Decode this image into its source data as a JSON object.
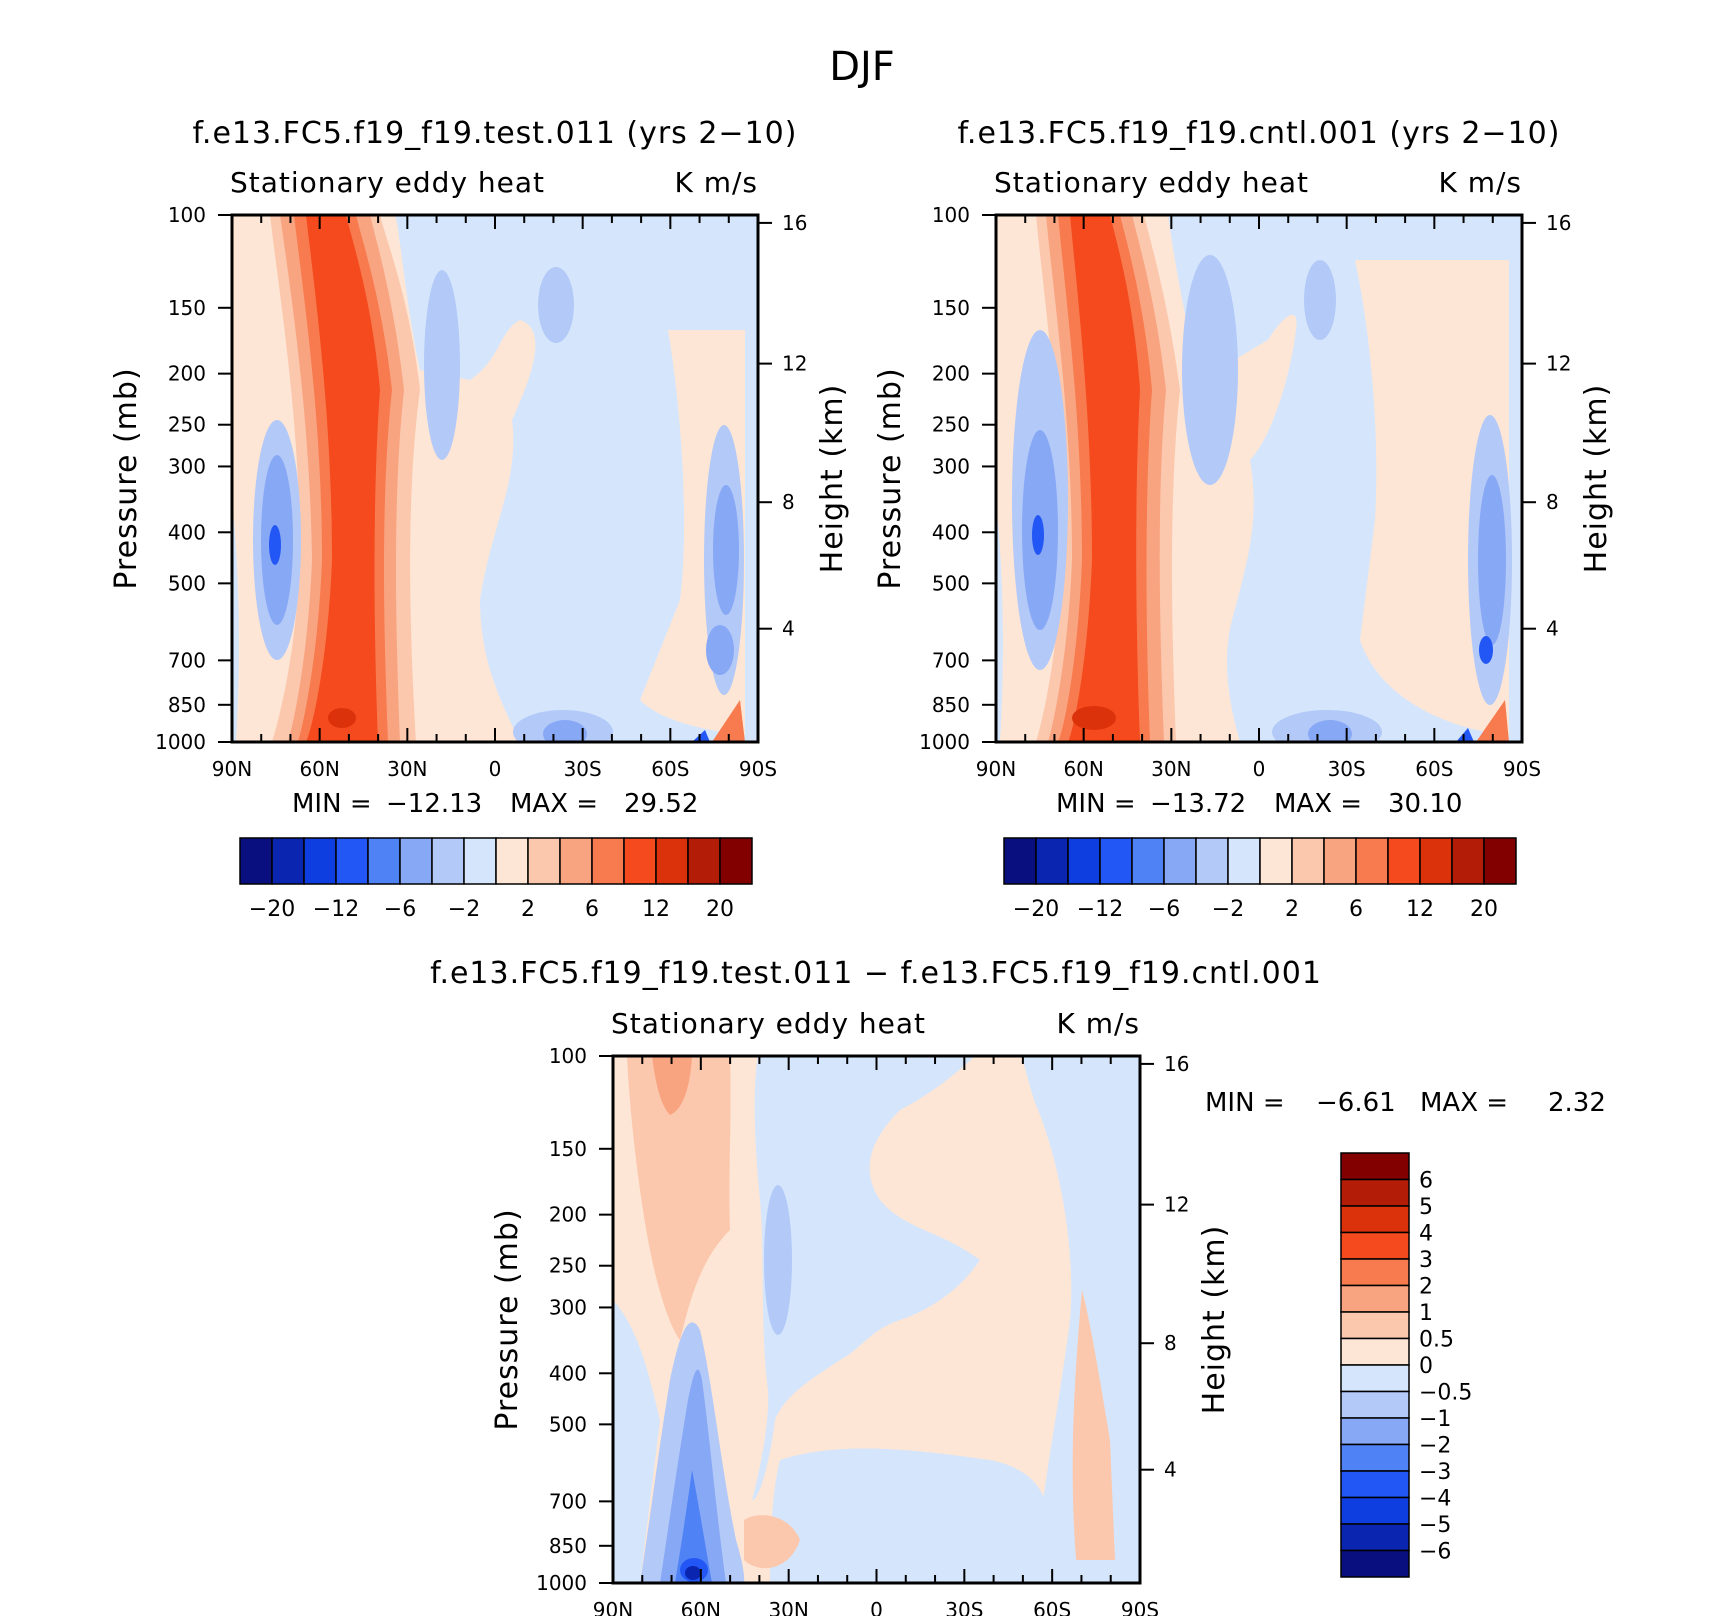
{
  "figure": {
    "title": "DJF"
  },
  "axes": {
    "pressure_label": "Pressure (mb)",
    "height_label": "Height (km)",
    "variable": "Stationary eddy heat",
    "units": "K m/s",
    "pressure_ticks": [
      "100",
      "150",
      "200",
      "250",
      "300",
      "400",
      "500",
      "700",
      "850",
      "1000"
    ],
    "height_ticks": [
      "16",
      "12",
      "8",
      "4"
    ],
    "lat_ticks": [
      "90N",
      "60N",
      "30N",
      "0",
      "30S",
      "60S",
      "90S"
    ]
  },
  "chart_data": [
    {
      "type": "heatmap",
      "id": "test",
      "title": "f.e13.FC5.f19_f19.test.011 (yrs 2-10)",
      "variable": "Stationary eddy heat",
      "units": "K m/s",
      "xlabel": "",
      "ylabel": "Pressure (mb)",
      "y2label": "Height (km)",
      "x_ticks": [
        "90N",
        "60N",
        "30N",
        "0",
        "30S",
        "60S",
        "90S"
      ],
      "y_ticks": [
        100,
        150,
        200,
        250,
        300,
        400,
        500,
        700,
        850,
        1000
      ],
      "y2_ticks": [
        16,
        12,
        8,
        4
      ],
      "ylim": [
        1000,
        100
      ],
      "stats": {
        "min_label": "MIN =",
        "min": "-12.13",
        "max_label": "MAX =",
        "max": "29.52"
      },
      "colorbar": {
        "orientation": "horizontal",
        "levels": [
          -24,
          -20,
          -16,
          -12,
          -8,
          -6,
          -4,
          -2,
          0,
          2,
          4,
          6,
          8,
          12,
          16,
          20,
          24
        ],
        "tick_labels": [
          "-20",
          "-12",
          "-6",
          "-2",
          "2",
          "6",
          "12",
          "20"
        ]
      }
    },
    {
      "type": "heatmap",
      "id": "cntl",
      "title": "f.e13.FC5.f19_f19.cntl.001 (yrs 2-10)",
      "variable": "Stationary eddy heat",
      "units": "K m/s",
      "xlabel": "",
      "ylabel": "Pressure (mb)",
      "y2label": "Height (km)",
      "x_ticks": [
        "90N",
        "60N",
        "30N",
        "0",
        "30S",
        "60S",
        "90S"
      ],
      "y_ticks": [
        100,
        150,
        200,
        250,
        300,
        400,
        500,
        700,
        850,
        1000
      ],
      "y2_ticks": [
        16,
        12,
        8,
        4
      ],
      "ylim": [
        1000,
        100
      ],
      "stats": {
        "min_label": "MIN =",
        "min": "-13.72",
        "max_label": "MAX =",
        "max": "30.10"
      },
      "colorbar": {
        "orientation": "horizontal",
        "levels": [
          -24,
          -20,
          -16,
          -12,
          -8,
          -6,
          -4,
          -2,
          0,
          2,
          4,
          6,
          8,
          12,
          16,
          20,
          24
        ],
        "tick_labels": [
          "-20",
          "-12",
          "-6",
          "-2",
          "2",
          "6",
          "12",
          "20"
        ]
      }
    },
    {
      "type": "heatmap",
      "id": "diff",
      "title": "f.e13.FC5.f19_f19.test.011 - f.e13.FC5.f19_f19.cntl.001",
      "variable": "Stationary eddy heat",
      "units": "K m/s",
      "xlabel": "",
      "ylabel": "Pressure (mb)",
      "y2label": "Height (km)",
      "x_ticks": [
        "90N",
        "60N",
        "30N",
        "0",
        "30S",
        "60S",
        "90S"
      ],
      "y_ticks": [
        100,
        150,
        200,
        250,
        300,
        400,
        500,
        700,
        850,
        1000
      ],
      "y2_ticks": [
        16,
        12,
        8,
        4
      ],
      "ylim": [
        1000,
        100
      ],
      "stats": {
        "min_label": "MIN =",
        "min": "-6.61",
        "max_label": "MAX =",
        "max": "2.32"
      },
      "colorbar": {
        "orientation": "vertical",
        "tick_labels": [
          "6",
          "5",
          "4",
          "3",
          "2",
          "1",
          "0.5",
          "0",
          "-0.5",
          "-1",
          "-2",
          "-3",
          "-4",
          "-5",
          "-6"
        ]
      }
    }
  ],
  "palette": [
    "#0a0f80",
    "#0a26b0",
    "#0f3ee0",
    "#2257f5",
    "#4f82f5",
    "#87a8f5",
    "#b3c9f8",
    "#d5e6fc",
    "#fde6d5",
    "#fbc8ae",
    "#f9a480",
    "#f77b4f",
    "#f44a1d",
    "#dc320b",
    "#b31c06",
    "#820000"
  ]
}
